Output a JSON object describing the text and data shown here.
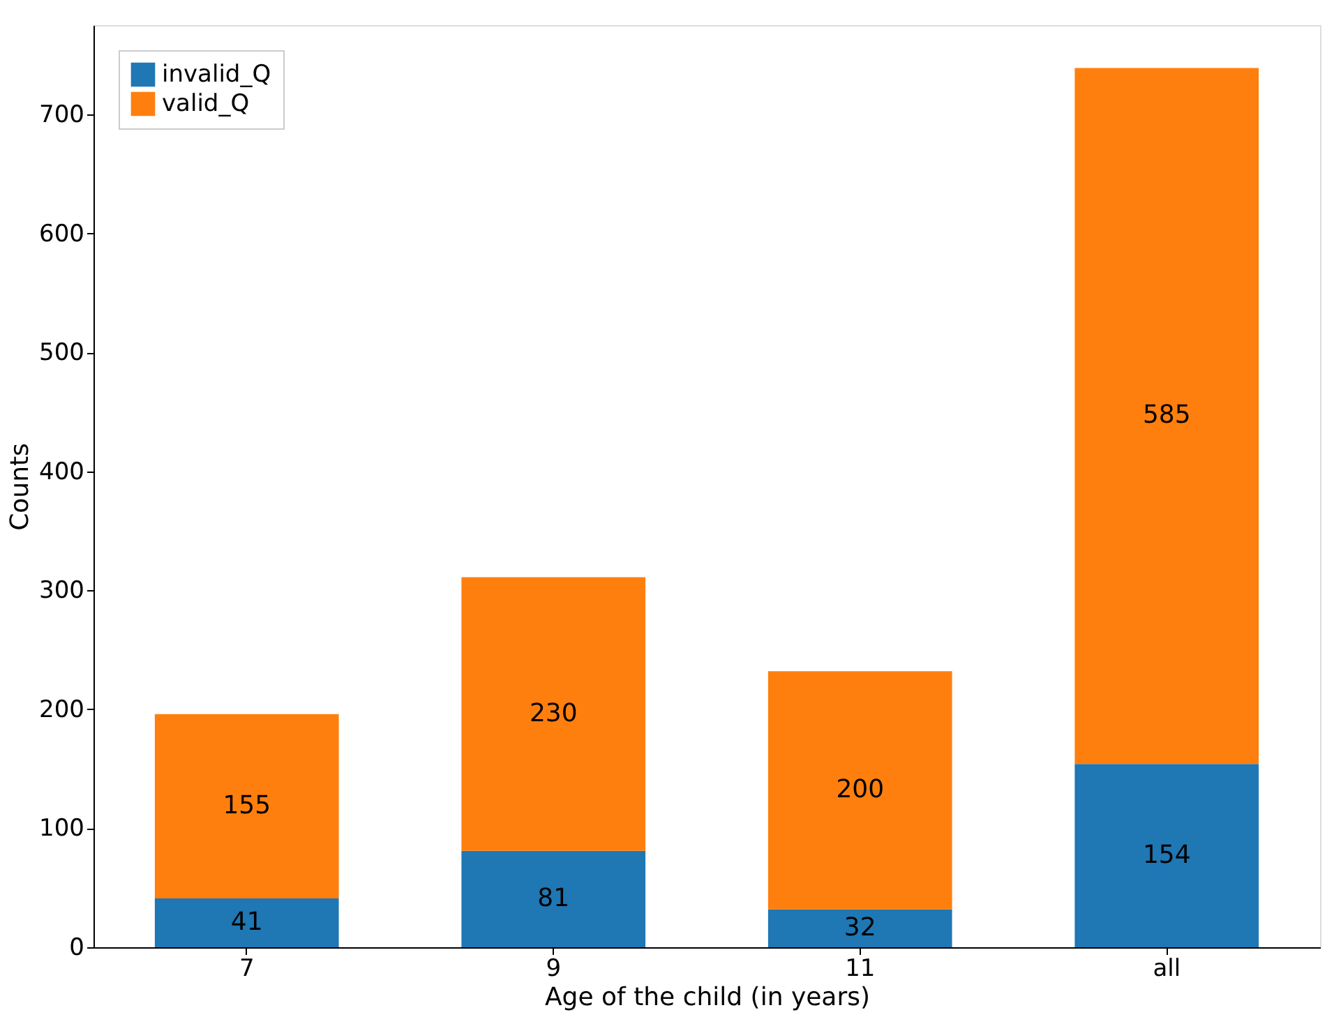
{
  "chart_data": {
    "type": "bar",
    "stacked": true,
    "xlabel": "Age of the child (in years)",
    "ylabel": "Counts",
    "categories": [
      "7",
      "9",
      "11",
      "all"
    ],
    "series": [
      {
        "name": "invalid_Q",
        "color": "#1f77b4",
        "values": [
          41,
          81,
          32,
          154
        ]
      },
      {
        "name": "valid_Q",
        "color": "#ff7f0e",
        "values": [
          155,
          230,
          200,
          585
        ]
      }
    ],
    "ylim": [
      0,
      775
    ],
    "yticks": [
      0,
      100,
      200,
      300,
      400,
      500,
      600,
      700
    ],
    "data_labels": true,
    "legend": "top left",
    "grid": false
  }
}
